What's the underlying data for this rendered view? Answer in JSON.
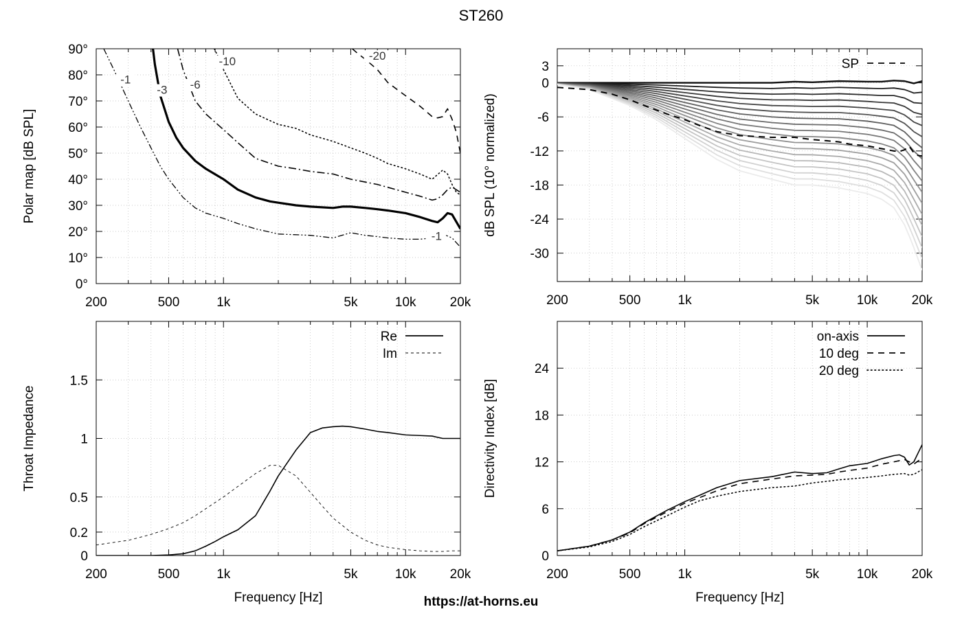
{
  "page": {
    "title": "ST260",
    "footer_url": "https://at-horns.eu"
  },
  "colors": {
    "grid": "#b8b8b8",
    "axis": "#000000",
    "text": "#000000"
  },
  "chart_data": [
    {
      "id": "polar",
      "type": "line",
      "subtype": "contour",
      "xscale": "log",
      "xlim": [
        200,
        20000
      ],
      "ylim": [
        0,
        90
      ],
      "xticks": [
        200,
        500,
        1000,
        5000,
        10000,
        20000
      ],
      "xticklabels": [
        "200",
        "500",
        "1k",
        "5k",
        "10k",
        "20k"
      ],
      "yticks": [
        0,
        10,
        20,
        30,
        40,
        50,
        60,
        70,
        80,
        90
      ],
      "yticklabels": [
        "0°",
        "10°",
        "20°",
        "30°",
        "40°",
        "50°",
        "60°",
        "70°",
        "80°",
        "90°"
      ],
      "xlabel": "",
      "ylabel": "Polar map [dB SPL]",
      "grid": true,
      "series": [
        {
          "name": "-1",
          "style": "dashdotdot",
          "width": 1.3,
          "color": "#000000",
          "x": [
            220,
            250,
            300,
            350,
            400,
            450,
            500,
            600,
            700,
            800,
            1000,
            1200,
            1500,
            2000,
            3000,
            4000,
            5000,
            6000,
            7000,
            8000,
            10000,
            12000,
            14000,
            16000,
            18000,
            20000
          ],
          "y": [
            90,
            82,
            70,
            60,
            52,
            45,
            40,
            33,
            29,
            27,
            25,
            23,
            21,
            19,
            18.5,
            17.5,
            19.5,
            18.5,
            18,
            17.5,
            17,
            17,
            17.5,
            19,
            17.5,
            14
          ]
        },
        {
          "name": "-3",
          "style": "solid",
          "width": 3.2,
          "color": "#000000",
          "x": [
            410,
            420,
            450,
            500,
            550,
            600,
            700,
            800,
            1000,
            1200,
            1500,
            1800,
            2000,
            2500,
            3000,
            4000,
            4500,
            5000,
            6000,
            7000,
            8000,
            10000,
            12000,
            14000,
            15000,
            16000,
            17000,
            18000,
            20000
          ],
          "y": [
            90,
            84,
            72,
            62,
            56,
            52,
            47,
            44,
            40,
            36,
            33,
            31.5,
            31,
            30,
            29.5,
            29,
            29.5,
            29.5,
            29,
            28.5,
            28,
            27,
            25.5,
            24,
            23.5,
            25,
            27,
            26.5,
            21
          ]
        },
        {
          "name": "-6",
          "style": "dashdot",
          "width": 1.6,
          "color": "#000000",
          "x": [
            560,
            600,
            700,
            800,
            1000,
            1200,
            1500,
            2000,
            2500,
            3000,
            4000,
            5000,
            7000,
            10000,
            12000,
            14000,
            15000,
            16000,
            17000,
            18000,
            20000
          ],
          "y": [
            90,
            82,
            70,
            65,
            59,
            54,
            48,
            45,
            44,
            43,
            42,
            40,
            38,
            35,
            33.5,
            32,
            32.5,
            34,
            36,
            37,
            35
          ]
        },
        {
          "name": "-10",
          "style": "dotted",
          "width": 1.6,
          "color": "#000000",
          "x": [
            890,
            950,
            1000,
            1200,
            1500,
            2000,
            2500,
            3000,
            4000,
            5000,
            6000,
            7000,
            8000,
            10000,
            12000,
            14000,
            16000,
            17000,
            18000,
            19000,
            20000
          ],
          "y": [
            90,
            86,
            82,
            71,
            65,
            61,
            59.5,
            57,
            54.5,
            52,
            50,
            48,
            46,
            44,
            42,
            40,
            43.5,
            42,
            38,
            35,
            34
          ]
        },
        {
          "name": "-20",
          "style": "dashed",
          "width": 1.6,
          "color": "#000000",
          "x": [
            5100,
            5500,
            6000,
            7000,
            8000,
            10000,
            12000,
            14000,
            15000,
            16000,
            17000,
            18000,
            19000,
            20000
          ],
          "y": [
            90,
            88,
            86,
            82,
            77,
            72,
            68,
            64,
            63.5,
            64,
            67,
            63,
            58,
            50
          ]
        }
      ],
      "annotations": [
        {
          "text": "-1",
          "x": 290,
          "y": 77
        },
        {
          "text": "-3",
          "x": 460,
          "y": 73
        },
        {
          "text": "-6",
          "x": 700,
          "y": 75
        },
        {
          "text": "-10",
          "x": 1050,
          "y": 84
        },
        {
          "text": "-20",
          "x": 7000,
          "y": 86
        },
        {
          "text": "-1",
          "x": 14800,
          "y": 17
        }
      ]
    },
    {
      "id": "spl",
      "type": "line",
      "xscale": "log",
      "xlim": [
        200,
        20000
      ],
      "ylim": [
        -35,
        6
      ],
      "xticks": [
        200,
        500,
        1000,
        5000,
        10000,
        20000
      ],
      "xticklabels": [
        "200",
        "500",
        "1k",
        "5k",
        "10k",
        "20k"
      ],
      "yticks": [
        3,
        0,
        -6,
        -12,
        -18,
        -24,
        -30
      ],
      "yticklabels": [
        "3",
        "0",
        "-6",
        "-12",
        "-18",
        "-24",
        "-30"
      ],
      "xlabel": "",
      "ylabel": "dB SPL (10° normalized)",
      "grid": true,
      "legend": {
        "position": "top-right",
        "entries": [
          {
            "label": "SP",
            "style": "dashed"
          }
        ]
      },
      "family": {
        "count": 18,
        "x": [
          200,
          300,
          500,
          700,
          1000,
          1500,
          2000,
          3000,
          4000,
          5000,
          7000,
          10000,
          12000,
          14000,
          16000,
          17000,
          18000,
          20000
        ],
        "base_shape": [
          0,
          0,
          0,
          0,
          0,
          0,
          0,
          0,
          0.2,
          0.1,
          0.3,
          0.2,
          0.2,
          0.4,
          0.3,
          0.1,
          -0.1,
          0.3
        ],
        "last_shape": [
          -0.3,
          -1.2,
          -4,
          -6.5,
          -9.8,
          -13.5,
          -15.5,
          -17,
          -18,
          -18,
          -18.5,
          -19.5,
          -20.5,
          -22,
          -25,
          -27,
          -29,
          -33
        ]
      },
      "series": [
        {
          "name": "SP",
          "style": "dashed",
          "width": 2.0,
          "color": "#000000",
          "x": [
            200,
            300,
            400,
            500,
            600,
            800,
            1000,
            1200,
            1500,
            2000,
            3000,
            4000,
            5000,
            6000,
            7000,
            8000,
            10000,
            12000,
            14000,
            15000,
            16000,
            17000,
            18000,
            19000,
            20000
          ],
          "y": [
            -0.8,
            -1.2,
            -2,
            -3,
            -4,
            -5.5,
            -6.5,
            -7.5,
            -8.6,
            -9.3,
            -9.6,
            -9.6,
            -10,
            -10.2,
            -10.4,
            -10.8,
            -11.1,
            -11.6,
            -12,
            -12.1,
            -11.8,
            -11.2,
            -12.3,
            -12.8,
            -12.9
          ]
        }
      ]
    },
    {
      "id": "impedance",
      "type": "line",
      "xscale": "log",
      "xlim": [
        200,
        20000
      ],
      "ylim": [
        0,
        2
      ],
      "xticks": [
        200,
        500,
        1000,
        5000,
        10000,
        20000
      ],
      "xticklabels": [
        "200",
        "500",
        "1k",
        "5k",
        "10k",
        "20k"
      ],
      "yticks": [
        0,
        0.2,
        0.5,
        1,
        1.5
      ],
      "yticklabels": [
        "0",
        "0.2",
        "0.5",
        "1",
        "1.5"
      ],
      "xlabel": "Frequency [Hz]",
      "ylabel": "Throat Impedance",
      "grid": true,
      "legend": {
        "position": "top-right",
        "entries": [
          {
            "label": "Re",
            "style": "solid"
          },
          {
            "label": "Im",
            "style": "dashed-thin"
          }
        ]
      },
      "series": [
        {
          "name": "Re",
          "style": "solid",
          "width": 1.6,
          "color": "#000000",
          "x": [
            200,
            300,
            400,
            500,
            600,
            700,
            800,
            900,
            1000,
            1200,
            1500,
            1800,
            2000,
            2500,
            3000,
            3500,
            4000,
            4500,
            5000,
            6000,
            7000,
            8000,
            10000,
            12000,
            14000,
            16000,
            18000,
            20000
          ],
          "y": [
            0,
            0,
            0,
            0.005,
            0.015,
            0.04,
            0.08,
            0.12,
            0.16,
            0.22,
            0.34,
            0.55,
            0.68,
            0.9,
            1.05,
            1.09,
            1.1,
            1.105,
            1.1,
            1.08,
            1.06,
            1.05,
            1.03,
            1.025,
            1.02,
            1.0,
            1.0,
            1.0
          ]
        },
        {
          "name": "Im",
          "style": "dashed-thin",
          "width": 0.9,
          "color": "#000000",
          "x": [
            200,
            300,
            400,
            500,
            600,
            700,
            800,
            1000,
            1200,
            1500,
            1800,
            2000,
            2500,
            3000,
            3500,
            4000,
            5000,
            6000,
            7000,
            8000,
            10000,
            12000,
            14000,
            16000,
            18000,
            20000
          ],
          "y": [
            0.09,
            0.13,
            0.18,
            0.23,
            0.28,
            0.34,
            0.4,
            0.5,
            0.59,
            0.7,
            0.77,
            0.77,
            0.68,
            0.54,
            0.42,
            0.32,
            0.2,
            0.13,
            0.09,
            0.07,
            0.05,
            0.04,
            0.035,
            0.035,
            0.04,
            0.04
          ]
        }
      ]
    },
    {
      "id": "di",
      "type": "line",
      "xscale": "log",
      "xlim": [
        200,
        20000
      ],
      "ylim": [
        0,
        30
      ],
      "xticks": [
        200,
        500,
        1000,
        5000,
        10000,
        20000
      ],
      "xticklabels": [
        "200",
        "500",
        "1k",
        "5k",
        "10k",
        "20k"
      ],
      "yticks": [
        0,
        6,
        12,
        18,
        24
      ],
      "yticklabels": [
        "0",
        "6",
        "12",
        "18",
        "24"
      ],
      "xlabel": "Frequency [Hz]",
      "ylabel": "Directivity Index [dB]",
      "grid": true,
      "legend": {
        "position": "top-right",
        "entries": [
          {
            "label": "on-axis",
            "style": "solid"
          },
          {
            "label": "10 deg",
            "style": "dashed"
          },
          {
            "label": "20 deg",
            "style": "dotted"
          }
        ]
      },
      "series": [
        {
          "name": "on-axis",
          "style": "solid",
          "width": 1.6,
          "color": "#000000",
          "x": [
            200,
            300,
            400,
            500,
            600,
            800,
            1000,
            1200,
            1500,
            2000,
            3000,
            4000,
            5000,
            6000,
            7000,
            8000,
            10000,
            12000,
            14000,
            15000,
            16000,
            17000,
            18000,
            20000
          ],
          "y": [
            0.6,
            1.2,
            2,
            3,
            4.2,
            5.8,
            6.9,
            7.7,
            8.7,
            9.6,
            10.1,
            10.7,
            10.5,
            10.6,
            11.1,
            11.5,
            11.8,
            12.4,
            12.8,
            12.9,
            12.6,
            11.6,
            12.0,
            14.2
          ]
        },
        {
          "name": "10 deg",
          "style": "dashed",
          "width": 1.6,
          "color": "#000000",
          "x": [
            200,
            300,
            400,
            500,
            600,
            800,
            1000,
            1200,
            1500,
            2000,
            3000,
            4000,
            5000,
            6000,
            7000,
            8000,
            10000,
            12000,
            14000,
            16000,
            17000,
            18000,
            20000
          ],
          "y": [
            0.6,
            1.2,
            2,
            2.9,
            4.1,
            5.6,
            6.7,
            7.4,
            8.3,
            9.2,
            9.8,
            10.2,
            10.3,
            10.4,
            10.7,
            10.9,
            11.2,
            11.7,
            12.0,
            12.3,
            12.0,
            11.7,
            12.5
          ]
        },
        {
          "name": "20 deg",
          "style": "dotted",
          "width": 1.6,
          "color": "#000000",
          "x": [
            200,
            300,
            400,
            500,
            600,
            800,
            1000,
            1200,
            1500,
            2000,
            3000,
            4000,
            5000,
            6000,
            7000,
            8000,
            10000,
            12000,
            14000,
            16000,
            17000,
            18000,
            20000
          ],
          "y": [
            0.6,
            1.1,
            1.8,
            2.7,
            3.7,
            5.1,
            6.2,
            7.0,
            7.6,
            8.2,
            8.7,
            8.9,
            9.3,
            9.5,
            9.7,
            9.8,
            10.0,
            10.2,
            10.4,
            10.5,
            10.3,
            10.4,
            11.0
          ]
        }
      ]
    }
  ]
}
